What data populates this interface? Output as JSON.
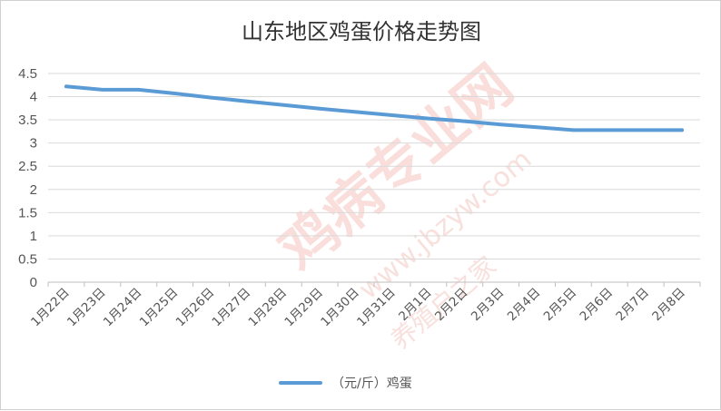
{
  "watermark": {
    "brand": "鸡病专业网",
    "url": "www.jbzyw.com",
    "slogan": "养殖户之家"
  },
  "chart_data": {
    "type": "line",
    "title": "山东地区鸡蛋价格走势图",
    "xlabel": "",
    "ylabel": "",
    "ylim": [
      0,
      4.5
    ],
    "yticks": [
      "0",
      "0.5",
      "1",
      "1.5",
      "2",
      "2.5",
      "3",
      "3.5",
      "4",
      "4.5"
    ],
    "categories": [
      "1月22日",
      "1月23日",
      "1月24日",
      "1月25日",
      "1月26日",
      "1月27日",
      "1月28日",
      "1月29日",
      "1月30日",
      "1月31日",
      "2月1日",
      "2月2日",
      "2月3日",
      "2月4日",
      "2月5日",
      "2月6日",
      "2月7日",
      "2月8日"
    ],
    "series": [
      {
        "name": "（元/斤）鸡蛋",
        "color": "#5b9bd5",
        "values": [
          4.22,
          4.15,
          4.15,
          4.07,
          3.98,
          3.9,
          3.82,
          3.74,
          3.67,
          3.6,
          3.53,
          3.47,
          3.4,
          3.34,
          3.28,
          3.28,
          3.28,
          3.28
        ]
      }
    ],
    "grid": true,
    "legend": "bottom"
  }
}
